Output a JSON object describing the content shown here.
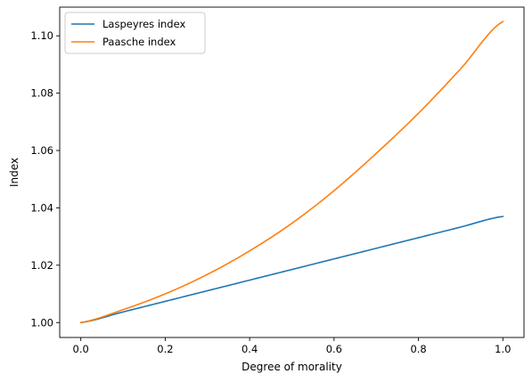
{
  "chart_data": {
    "type": "line",
    "title": "",
    "xlabel": "Degree of morality",
    "ylabel": "Index",
    "xlim": [
      -0.05,
      1.05
    ],
    "ylim": [
      0.9948,
      1.11
    ],
    "xticks": [
      0.0,
      0.2,
      0.4,
      0.6,
      0.8,
      1.0
    ],
    "xtick_labels": [
      "0.0",
      "0.2",
      "0.4",
      "0.6",
      "0.8",
      "1.0"
    ],
    "yticks": [
      1.0,
      1.02,
      1.04,
      1.06,
      1.08,
      1.1
    ],
    "ytick_labels": [
      "1.00",
      "1.02",
      "1.04",
      "1.06",
      "1.08",
      "1.10"
    ],
    "grid": false,
    "legend_position": "upper-left",
    "x": [
      0.0,
      0.1,
      0.2,
      0.3,
      0.4,
      0.5,
      0.6,
      0.7,
      0.8,
      0.9,
      1.0
    ],
    "series": [
      {
        "name": "Laspeyres index",
        "color": "#1f77b4",
        "values": [
          1.0,
          1.0037,
          1.0074,
          1.0111,
          1.0148,
          1.0185,
          1.0222,
          1.0259,
          1.0296,
          1.0333,
          1.037
        ]
      },
      {
        "name": "Paasche index",
        "color": "#ff7f0e",
        "values": [
          1.0,
          1.0045,
          1.01,
          1.0168,
          1.025,
          1.0346,
          1.046,
          1.059,
          1.073,
          1.0885,
          1.105
        ]
      }
    ]
  }
}
